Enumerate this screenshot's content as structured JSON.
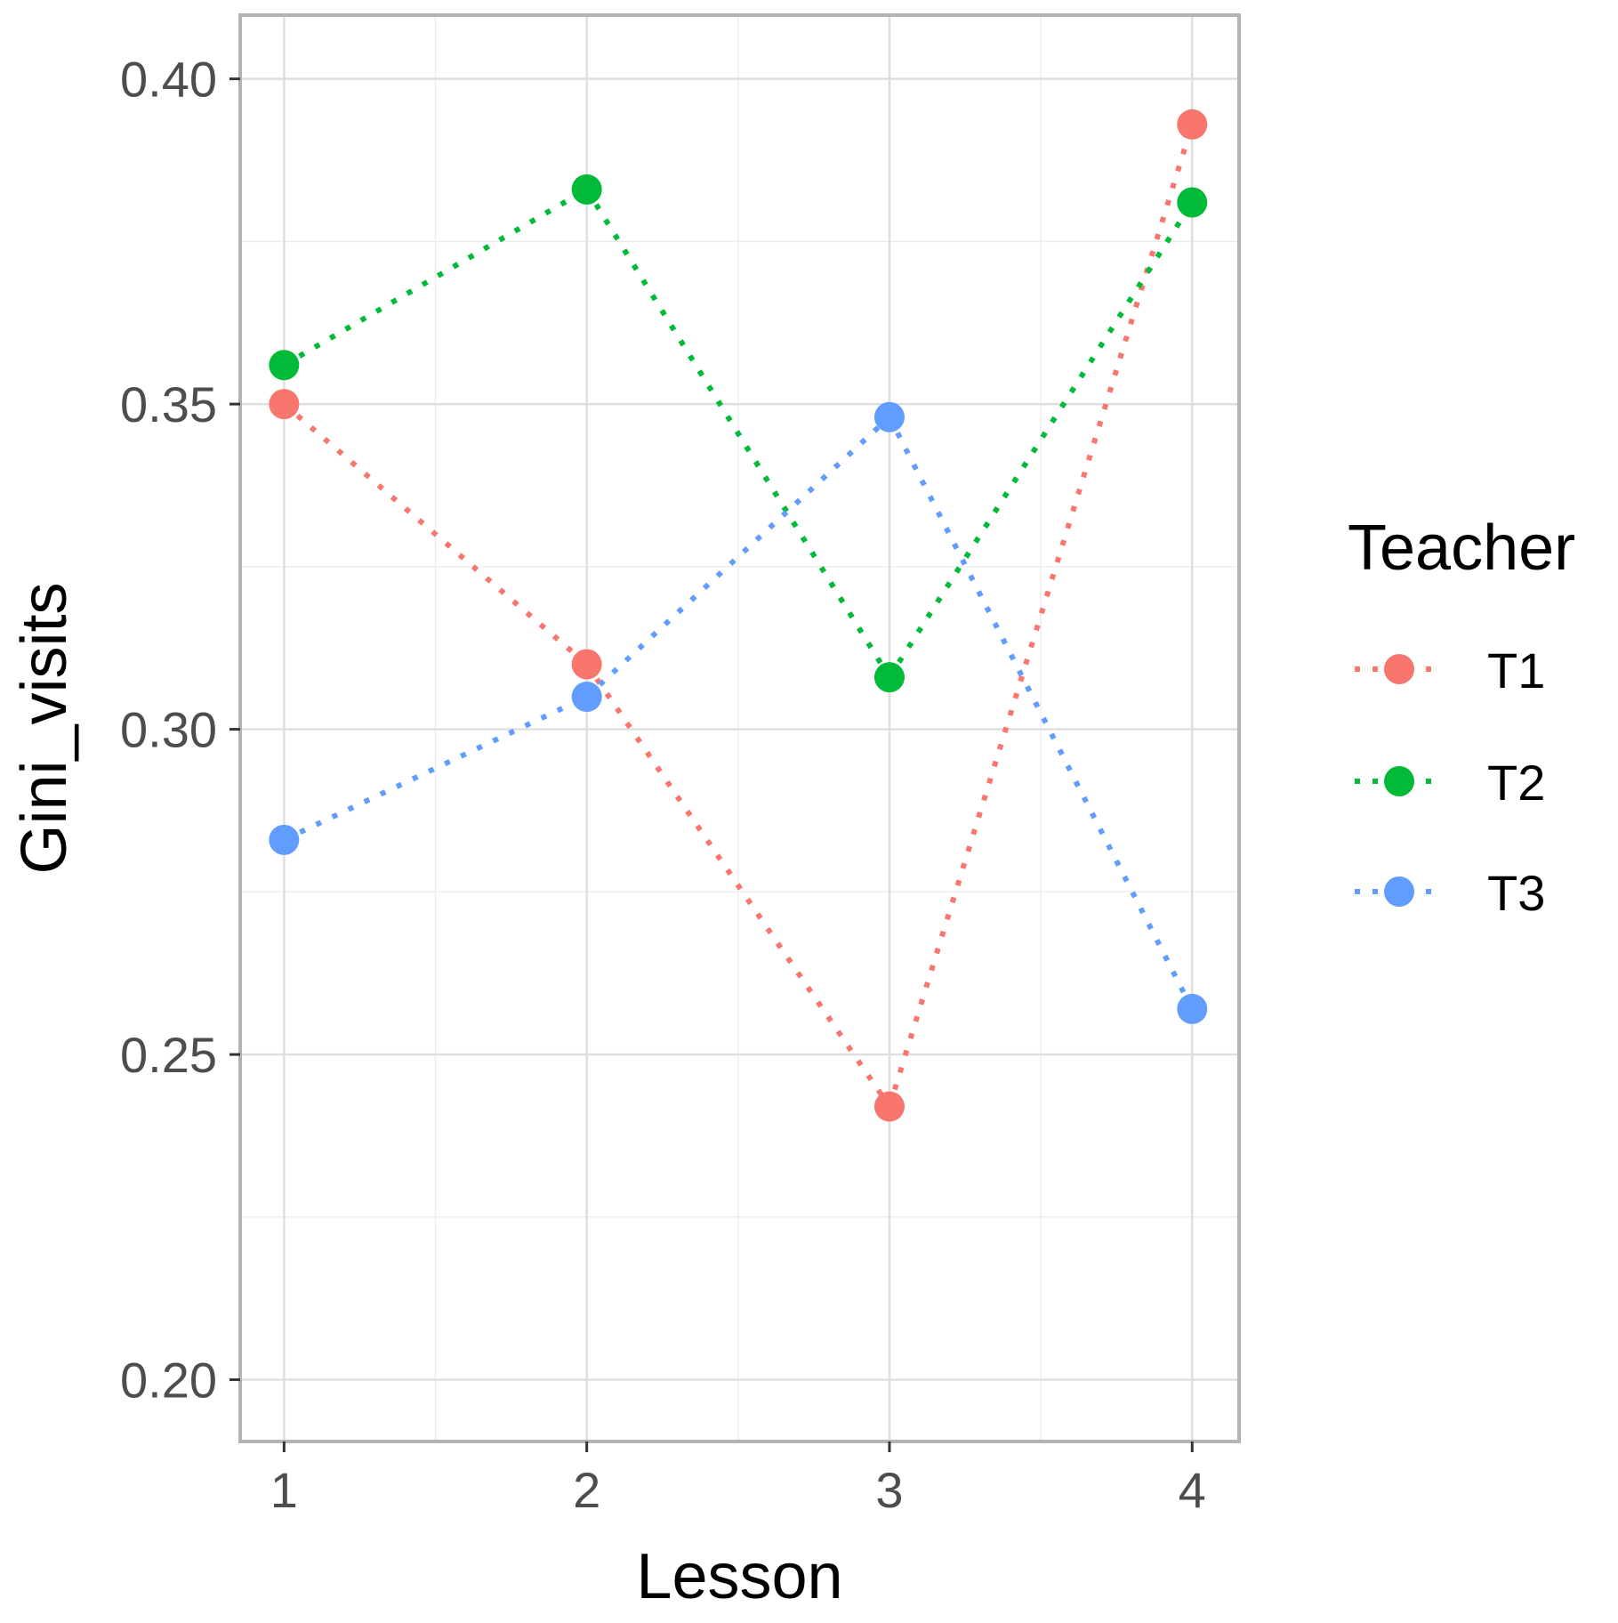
{
  "chart_data": {
    "type": "line",
    "title": "",
    "xlabel": "Lesson",
    "ylabel": "Gini_visits",
    "x": [
      1,
      2,
      3,
      4
    ],
    "x_ticks": [
      "1",
      "2",
      "3",
      "4"
    ],
    "xlim": [
      0.855,
      4.155
    ],
    "y_ticks": [
      "0.20",
      "0.25",
      "0.30",
      "0.35",
      "0.40"
    ],
    "y_tick_values": [
      0.2,
      0.25,
      0.3,
      0.35,
      0.4
    ],
    "ylim": [
      0.1905,
      0.4098
    ],
    "grid": true,
    "legend": {
      "title": "Teacher",
      "placement": "right"
    },
    "series": [
      {
        "name": "T1",
        "color": "#F8766D",
        "values": [
          0.35,
          0.31,
          0.242,
          0.393
        ]
      },
      {
        "name": "T2",
        "color": "#00BA38",
        "values": [
          0.356,
          0.383,
          0.308,
          0.381
        ]
      },
      {
        "name": "T3",
        "color": "#619CFF",
        "values": [
          0.283,
          0.305,
          0.348,
          0.257
        ]
      }
    ]
  }
}
